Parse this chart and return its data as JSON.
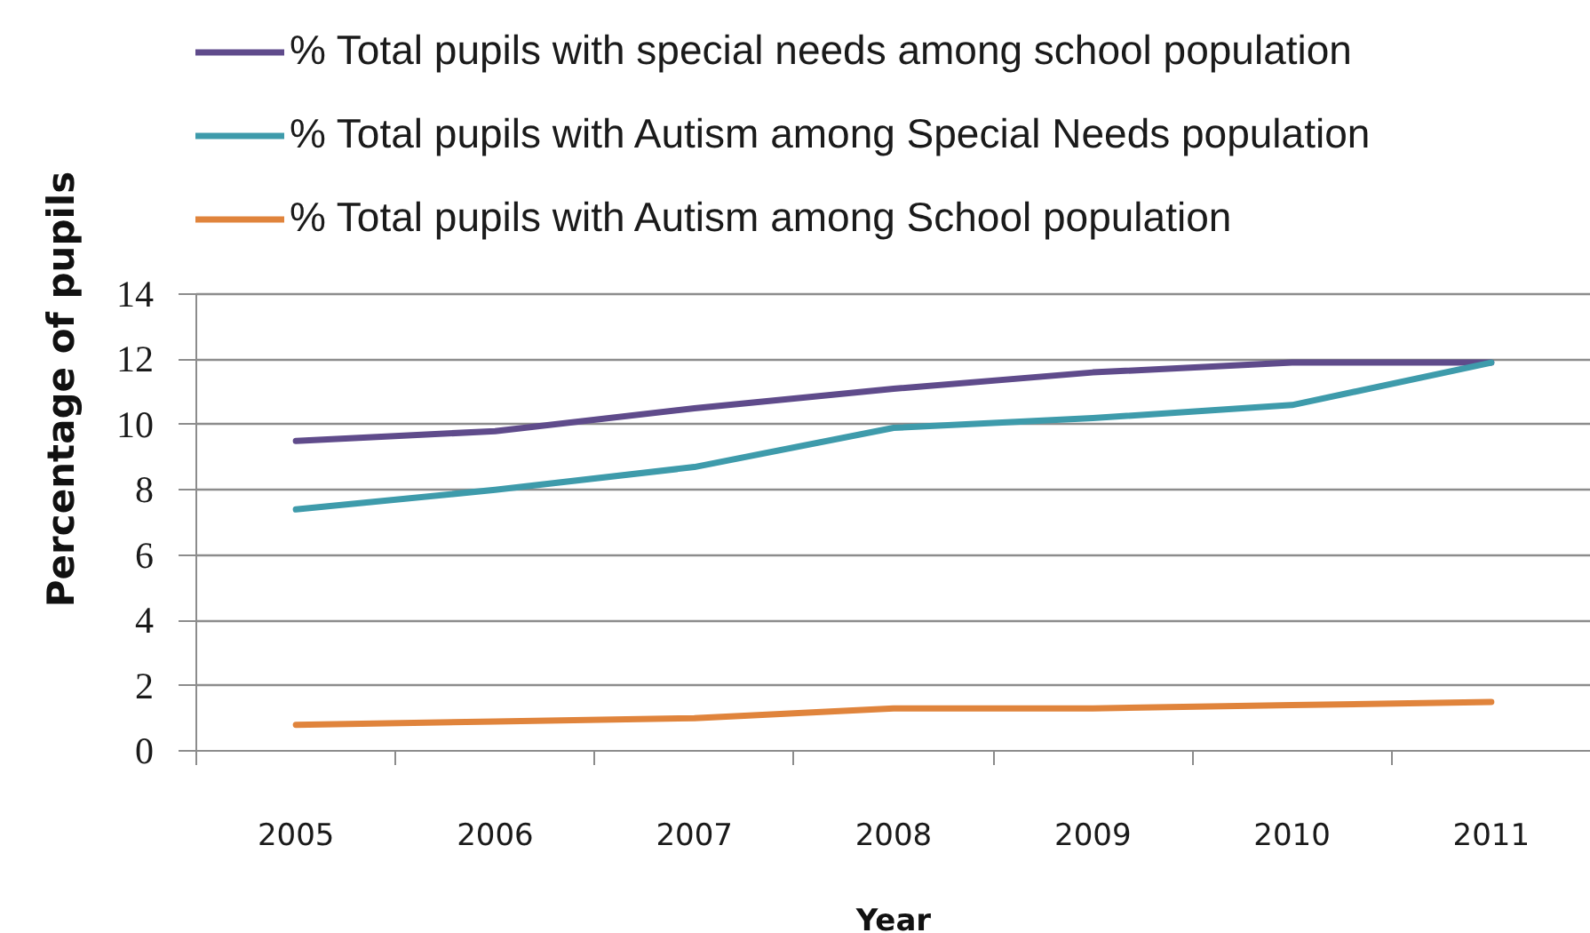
{
  "chart_data": {
    "type": "line",
    "xlabel": "Year",
    "ylabel": "Percentage of pupils",
    "categories": [
      "2005",
      "2006",
      "2007",
      "2008",
      "2009",
      "2010",
      "2011"
    ],
    "series": [
      {
        "name": "% Total pupils with special needs among school population",
        "color": "#5f4b8b",
        "values": [
          9.5,
          9.8,
          10.5,
          11.1,
          11.6,
          11.9,
          11.9
        ]
      },
      {
        "name": "% Total pupils with Autism among Special Needs population",
        "color": "#3e9bab",
        "values": [
          7.4,
          8.0,
          8.7,
          9.9,
          10.2,
          10.6,
          11.9
        ]
      },
      {
        "name": "% Total pupils with Autism among School population",
        "color": "#e0843c",
        "values": [
          0.8,
          0.9,
          1.0,
          1.3,
          1.3,
          1.4,
          1.5
        ]
      }
    ],
    "ylim": [
      0,
      14
    ],
    "yticks": [
      0,
      2,
      4,
      6,
      8,
      10,
      12,
      14
    ],
    "grid": "y",
    "legend": "top left",
    "marker": "none",
    "line_style": "solid"
  }
}
